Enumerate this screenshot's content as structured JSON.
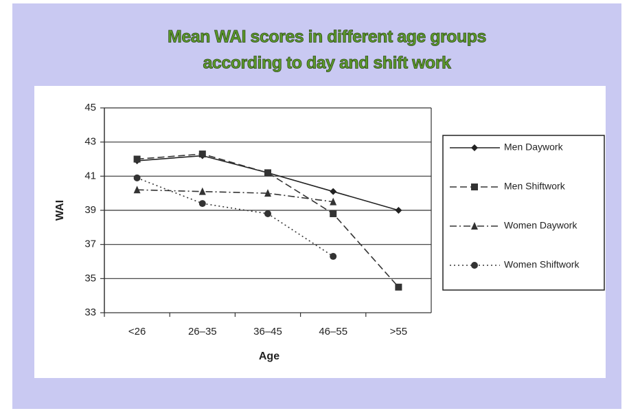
{
  "chart_data": {
    "type": "line",
    "title": [
      "Mean WAI scores in different age groups",
      "according to day and shift work"
    ],
    "x_label": "Age",
    "y_label": "WAI",
    "categories": [
      "<26",
      "26–35",
      "36–45",
      "46–55",
      ">55"
    ],
    "ylim": [
      33,
      45
    ],
    "yticks": [
      33,
      35,
      37,
      39,
      41,
      43,
      45
    ],
    "grid": true,
    "legend": "right",
    "series": [
      {
        "name": "Men Daywork",
        "color": "#222222",
        "dash": "none",
        "marker": "diamond",
        "values": [
          41.9,
          42.2,
          41.2,
          40.1,
          39.0
        ]
      },
      {
        "name": "Men Shiftwork",
        "color": "#333333",
        "dash": "10,5",
        "marker": "square",
        "values": [
          42.0,
          42.3,
          41.2,
          38.8,
          34.5
        ]
      },
      {
        "name": "Women Daywork",
        "color": "#333333",
        "dash": "10,4,2,4",
        "marker": "triangle",
        "values": [
          40.2,
          40.1,
          40.0,
          39.5,
          null
        ]
      },
      {
        "name": "Women Shiftwork",
        "color": "#333333",
        "dash": "2,4",
        "marker": "circle",
        "values": [
          40.9,
          39.4,
          38.8,
          36.3,
          null
        ]
      }
    ]
  }
}
